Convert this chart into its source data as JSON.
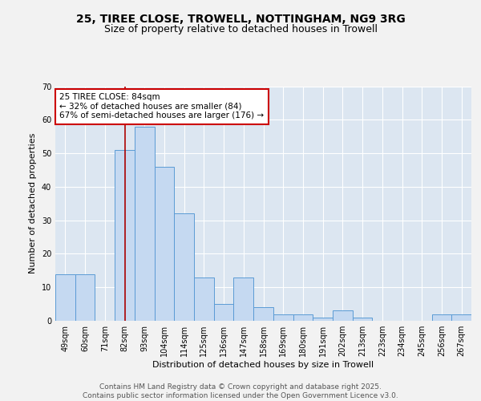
{
  "title_line1": "25, TIREE CLOSE, TROWELL, NOTTINGHAM, NG9 3RG",
  "title_line2": "Size of property relative to detached houses in Trowell",
  "xlabel": "Distribution of detached houses by size in Trowell",
  "ylabel": "Number of detached properties",
  "categories": [
    "49sqm",
    "60sqm",
    "71sqm",
    "82sqm",
    "93sqm",
    "104sqm",
    "114sqm",
    "125sqm",
    "136sqm",
    "147sqm",
    "158sqm",
    "169sqm",
    "180sqm",
    "191sqm",
    "202sqm",
    "213sqm",
    "223sqm",
    "234sqm",
    "245sqm",
    "256sqm",
    "267sqm"
  ],
  "values": [
    14,
    14,
    0,
    51,
    58,
    46,
    32,
    13,
    5,
    13,
    4,
    2,
    2,
    1,
    3,
    1,
    0,
    0,
    0,
    2,
    2
  ],
  "bar_color": "#c5d9f1",
  "bar_edge_color": "#5b9bd5",
  "vline_color": "#aa0000",
  "vline_x": 3,
  "annotation_text": "25 TIREE CLOSE: 84sqm\n← 32% of detached houses are smaller (84)\n67% of semi-detached houses are larger (176) →",
  "annotation_box_color": "#ffffff",
  "annotation_box_edge": "#cc0000",
  "ylim": [
    0,
    70
  ],
  "yticks": [
    0,
    10,
    20,
    30,
    40,
    50,
    60,
    70
  ],
  "background_color": "#dce6f1",
  "grid_color": "#ffffff",
  "fig_background": "#f2f2f2",
  "title_fontsize": 10,
  "subtitle_fontsize": 9,
  "axis_label_fontsize": 8,
  "tick_fontsize": 7,
  "annotation_fontsize": 7.5,
  "footer_fontsize": 6.5
}
